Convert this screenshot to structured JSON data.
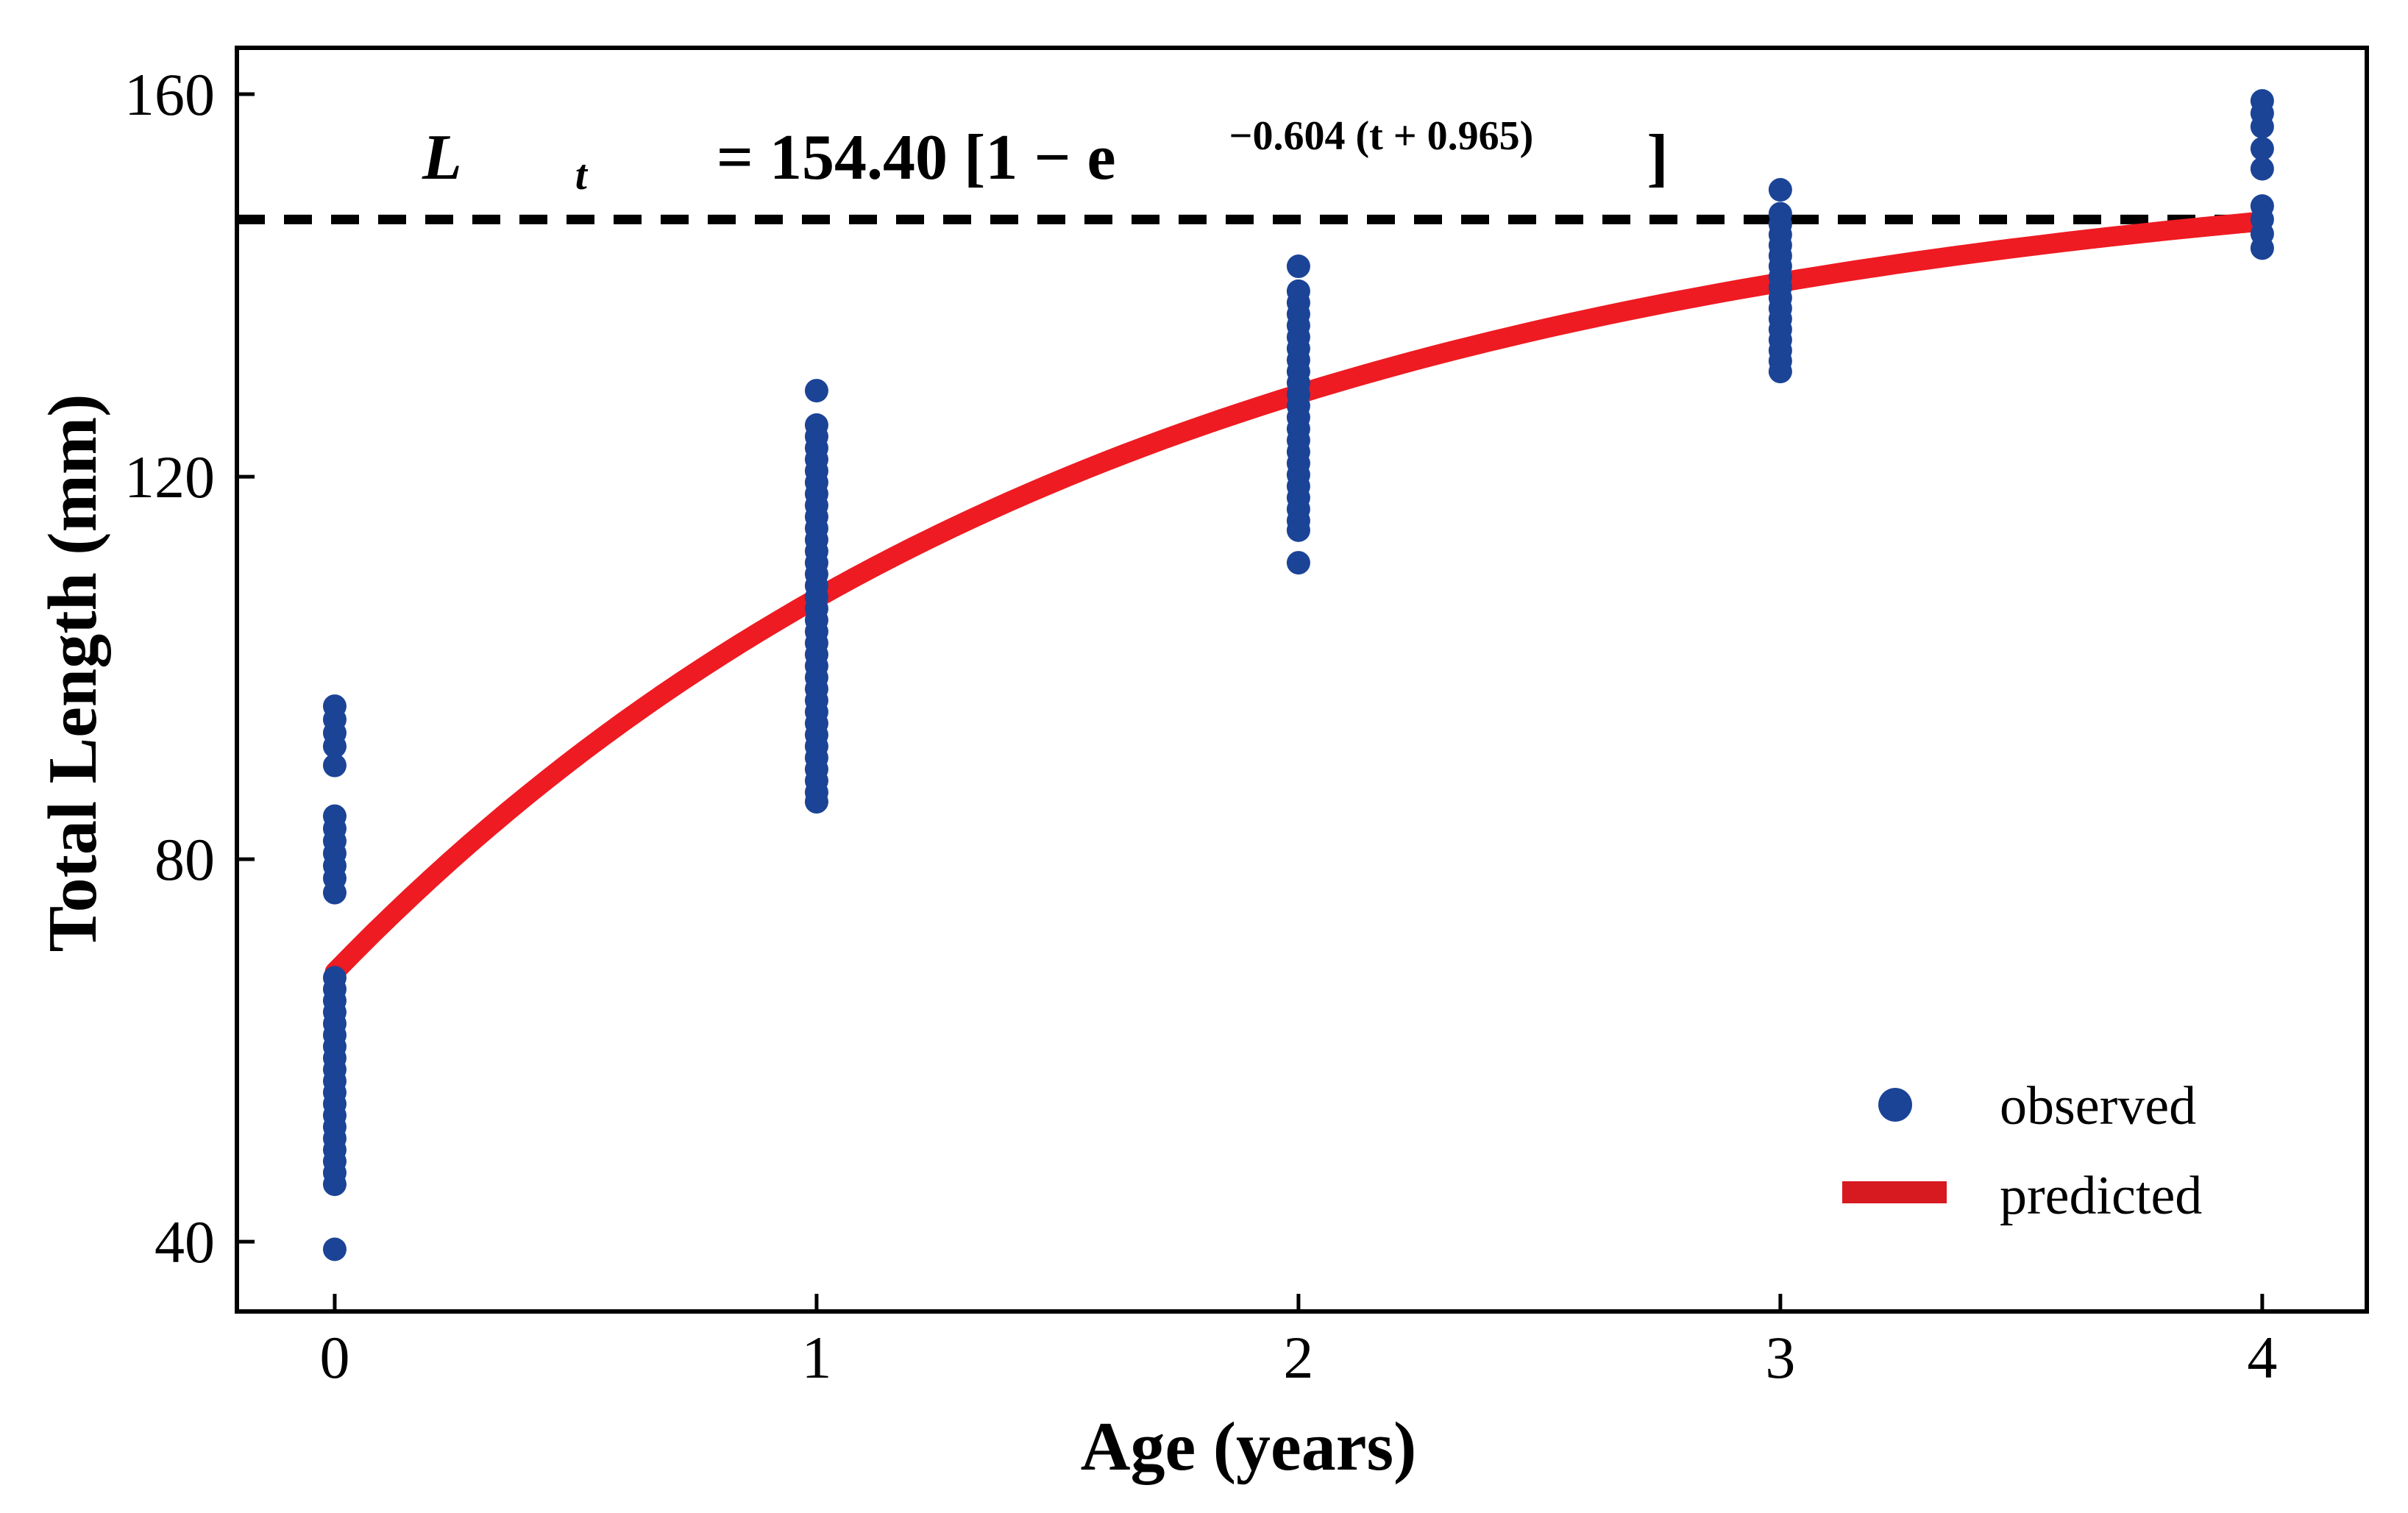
{
  "figure": {
    "background": "#ffffff",
    "axis_color": "#000000"
  },
  "chart_data": {
    "type": "scatter",
    "title": "",
    "xlabel": "Age (years)",
    "ylabel": "Total Length (mm)",
    "x_ticks": [
      0,
      1,
      2,
      3,
      4
    ],
    "y_ticks": [
      40,
      80,
      120,
      160
    ],
    "xlim": [
      -0.203,
      4.217
    ],
    "ylim": [
      32.7,
      164.85
    ],
    "grid": false,
    "legend_position": "lower right",
    "equation": {
      "text": "Lt = 154.40 [1 − e−0.604 (t + 0.965)]",
      "prefix": "L",
      "sub": "t",
      "mid": " = 154.40 [1 − e",
      "sup": "−0.604 (t + 0.965)",
      "suffix": "]"
    },
    "dashed_line": {
      "value": 146.9,
      "x_start": -0.203,
      "x_end": 4.0,
      "color": "#000000"
    },
    "legend": [
      {
        "label": "observed",
        "marker": "dot",
        "color": "#1b4497"
      },
      {
        "label": "predicted",
        "marker": "line",
        "color": "#d61a20"
      }
    ],
    "series": [
      {
        "name": "observed",
        "type": "scatter",
        "color": "#1b4497",
        "groups": [
          {
            "age": 0,
            "lengths": [
              96.0,
              94.6,
              93.2,
              91.8,
              89.8,
              84.5,
              83.2,
              81.9,
              80.6,
              79.3,
              78.0,
              76.5,
              67.6,
              66.4,
              65.2,
              64.0,
              62.8,
              61.6,
              60.4,
              59.2,
              58.0,
              56.8,
              55.6,
              54.4,
              53.2,
              52.0,
              50.8,
              49.6,
              48.4,
              47.2,
              46.0,
              39.2
            ]
          },
          {
            "age": 1,
            "lengths": [
              129.0,
              125.4,
              124.2,
              123.0,
              121.8,
              120.6,
              119.4,
              118.2,
              117.0,
              115.8,
              114.6,
              113.4,
              112.2,
              111.0,
              109.8,
              108.6,
              107.4,
              106.2,
              105.0,
              103.8,
              102.6,
              101.4,
              100.2,
              99.0,
              97.8,
              96.6,
              95.4,
              94.2,
              93.0,
              91.8,
              90.6,
              89.4,
              88.2,
              87.0,
              86.0
            ]
          },
          {
            "age": 2,
            "lengths": [
              142.0,
              139.4,
              138.2,
              137.0,
              135.8,
              134.6,
              133.4,
              132.2,
              131.0,
              129.8,
              128.6,
              127.4,
              126.2,
              125.0,
              123.8,
              122.6,
              121.4,
              120.2,
              119.0,
              117.8,
              116.6,
              115.4,
              114.4,
              111.0
            ]
          },
          {
            "age": 3,
            "lengths": [
              150.0,
              147.5,
              146.4,
              145.3,
              144.2,
              143.1,
              142.0,
              140.9,
              139.8,
              138.7,
              137.6,
              136.5,
              135.4,
              134.3,
              133.2,
              132.1,
              131.0
            ]
          },
          {
            "age": 4,
            "lengths": [
              159.3,
              158.0,
              156.6,
              154.3,
              152.2,
              148.3,
              146.9,
              145.4,
              143.9
            ]
          }
        ]
      },
      {
        "name": "predicted",
        "type": "line",
        "color": "#ee1b22",
        "model": "von Bertalanffy: L(t) = Linf (1 − exp(−K (t − t0)))",
        "params": {
          "Linf": 154.4,
          "K": 0.604,
          "t0": -0.965
        },
        "t_range": [
          0,
          4
        ]
      }
    ]
  }
}
